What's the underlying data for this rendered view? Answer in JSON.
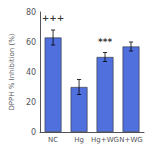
{
  "chart_data": {
    "type": "bar",
    "categories": [
      "NC",
      "Hg",
      "Hg+WG",
      "N+WG"
    ],
    "values": [
      63,
      30,
      50,
      57
    ],
    "errors": [
      5,
      5,
      3,
      3
    ],
    "ylabel": "DPPH % Inhibition (%)",
    "ylim": [
      0,
      80
    ],
    "yticks": [
      0,
      20,
      40,
      60,
      80
    ],
    "grid": false,
    "annotations": [
      {
        "text": "+++",
        "x": "NC",
        "y": 73
      },
      {
        "text": "***",
        "x": "Hg+WG",
        "y": 57
      }
    ]
  }
}
